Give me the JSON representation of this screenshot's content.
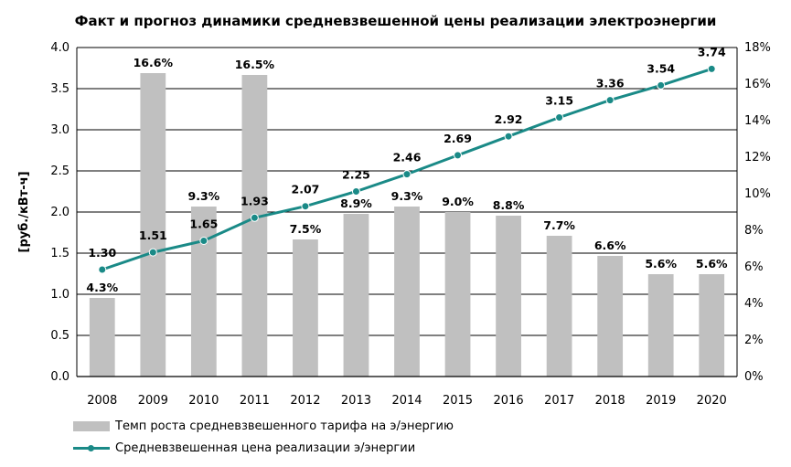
{
  "chart_data": {
    "type": "bar+line",
    "title": "Факт и прогноз динамики средневзвешенной цены реализации электроэнергии",
    "categories": [
      "2008",
      "2009",
      "2010",
      "2011",
      "2012",
      "2013",
      "2014",
      "2015",
      "2016",
      "2017",
      "2018",
      "2019",
      "2020"
    ],
    "ylabel_left": "[руб./кВт-ч]",
    "ylim_left": [
      0,
      4.0
    ],
    "yticks_left": [
      "0.0",
      "0.5",
      "1.0",
      "1.5",
      "2.0",
      "2.5",
      "3.0",
      "3.5",
      "4.0"
    ],
    "ylim_right": [
      0,
      18
    ],
    "yticks_right": [
      "0%",
      "2%",
      "4%",
      "6%",
      "8%",
      "10%",
      "12%",
      "14%",
      "16%",
      "18%"
    ],
    "grid": true,
    "legend_position": "bottom-left",
    "series": [
      {
        "name": "Темп роста средневзвешенного тарифа на э/энергию",
        "type": "bar",
        "axis": "right",
        "color": "#c0c0c0",
        "values": [
          4.3,
          16.6,
          9.3,
          16.5,
          7.5,
          8.9,
          9.3,
          9.0,
          8.8,
          7.7,
          6.6,
          5.6,
          5.6
        ],
        "labels": [
          "4.3%",
          "16.6%",
          "9.3%",
          "16.5%",
          "7.5%",
          "8.9%",
          "9.3%",
          "9.0%",
          "8.8%",
          "7.7%",
          "6.6%",
          "5.6%",
          "5.6%"
        ]
      },
      {
        "name": "Средневзвешенная цена реализации э/энергии",
        "type": "line",
        "axis": "left",
        "color": "#1a8a87",
        "values": [
          1.3,
          1.51,
          1.65,
          1.93,
          2.07,
          2.25,
          2.46,
          2.69,
          2.92,
          3.15,
          3.36,
          3.54,
          3.74
        ],
        "labels": [
          "1.30",
          "1.51",
          "1.65",
          "1.93",
          "2.07",
          "2.25",
          "2.46",
          "2.69",
          "2.92",
          "3.15",
          "3.36",
          "3.54",
          "3.74"
        ]
      }
    ]
  }
}
